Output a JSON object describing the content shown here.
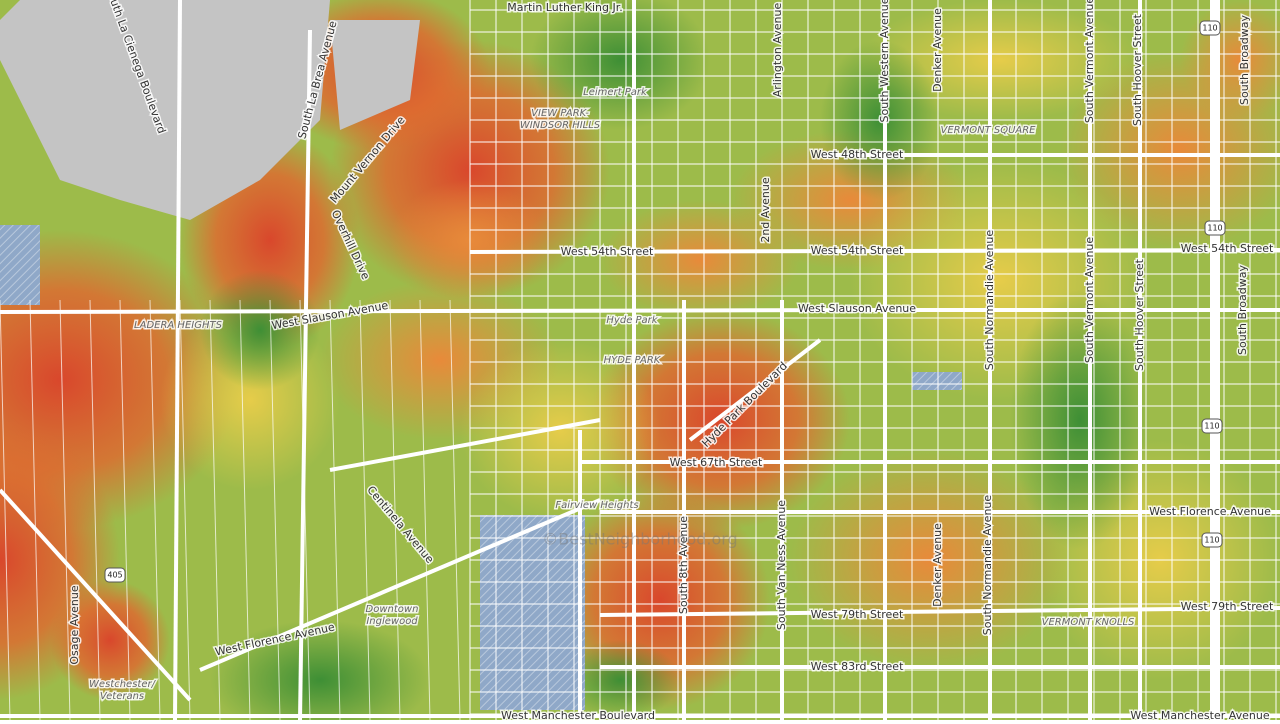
{
  "street_labels": [
    "Martin Luther King Jr.",
    "South La Cienega Boulevard",
    "South La Brea Avenue",
    "Mount Vernon Drive",
    "Overhill Drive",
    "Arlington Avenue",
    "South Western Avenue",
    "Denker Avenue",
    "South Vermont Avenue",
    "South Hoover Street",
    "South Broadway",
    "West 48th Street",
    "2nd Avenue",
    "West 54th Street",
    "West 54th Street",
    "West 54th Street",
    "South Normandie Avenue",
    "South Vermont Avenue",
    "South Hoover Street",
    "South Broadway",
    "West Slauson Avenue",
    "West Slauson Avenue",
    "Hyde Park Boulevard",
    "West 67th Street",
    "Centinela Avenue",
    "South 8th Avenue",
    "South Van Ness Avenue",
    "Denker Avenue",
    "South Normandie Avenue",
    "West Florence Avenue",
    "West Florence Avenue",
    "West 79th Street",
    "West 79th Street",
    "West 83rd Street",
    "Osage Avenue",
    "West Manchester Boulevard",
    "West Manchester Avenue"
  ],
  "place_labels": [
    "Leimert Park",
    "VIEW PARK-",
    "WINDSOR HILLS",
    "VERMONT SQUARE",
    "LADERA HEIGHTS",
    "Hyde Park",
    "HYDE PARK",
    "Fairview Heights",
    "Downtown",
    "Inglewood",
    "VERMONT KNOLLS",
    "Westchester/",
    "Veterans"
  ],
  "highway_shields": [
    "110",
    "110",
    "110",
    "110",
    "405"
  ],
  "watermark": "©BestNeighborhood.org"
}
